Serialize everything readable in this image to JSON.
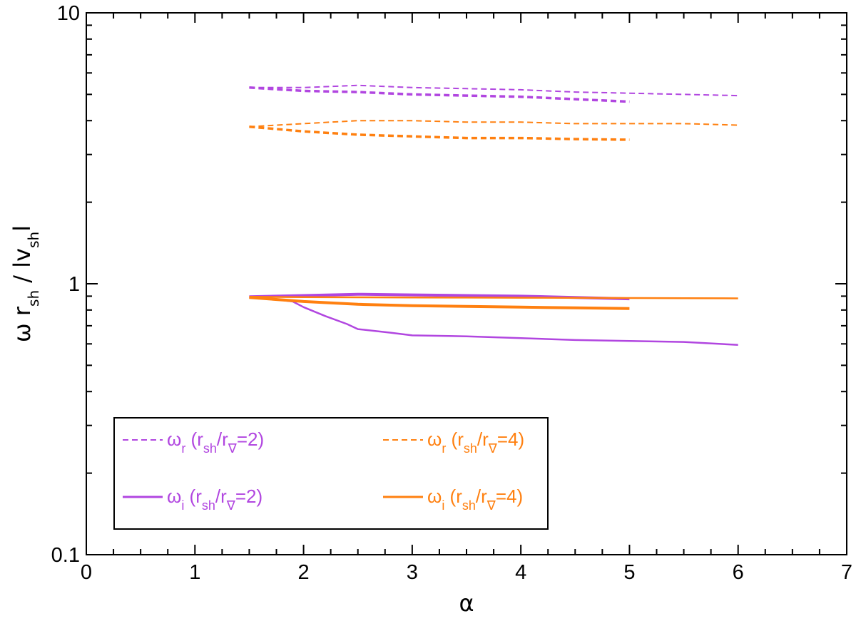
{
  "chart_data": {
    "type": "line",
    "title": "",
    "xlabel": "α",
    "ylabel": {
      "base": "ω r",
      "sub1": "sh",
      "mid": " / lv",
      "sub2": "sh",
      "end": "l"
    },
    "xlim": [
      0,
      7
    ],
    "ylim": [
      0.1,
      10
    ],
    "yscale": "log",
    "x_ticks": [
      "0",
      "1",
      "2",
      "3",
      "4",
      "5",
      "6",
      "7"
    ],
    "y_ticks": [
      "0.1",
      "1",
      "10"
    ],
    "grid": false,
    "legend_position": "lower-left",
    "colors": {
      "purple": "#b146e0",
      "orange": "#ff8010"
    },
    "legend": [
      {
        "sym": "ω",
        "sub": "r",
        "open": " (r",
        "sub2": "sh",
        "mid": "/r",
        "sub3": "∇",
        "close": "=2)",
        "color": "#b146e0",
        "dash": true
      },
      {
        "sym": "ω",
        "sub": "r",
        "open": " (r",
        "sub2": "sh",
        "mid": "/r",
        "sub3": "∇",
        "close": "=4)",
        "color": "#ff8010",
        "dash": true
      },
      {
        "sym": "ω",
        "sub": "i",
        "open": " (r",
        "sub2": "sh",
        "mid": "/r",
        "sub3": "∇",
        "close": "=2)",
        "color": "#b146e0",
        "dash": false
      },
      {
        "sym": "ω",
        "sub": "i",
        "open": " (r",
        "sub2": "sh",
        "mid": "/r",
        "sub3": "∇",
        "close": "=4)",
        "color": "#ff8010",
        "dash": false
      }
    ],
    "series": [
      {
        "color": "#b146e0",
        "dash": true,
        "width": 2,
        "x": [
          1.5,
          2.0,
          2.5,
          3.0,
          3.5,
          4.0,
          4.5,
          5.0,
          5.5,
          6.0
        ],
        "y": [
          5.3,
          5.3,
          5.4,
          5.3,
          5.25,
          5.2,
          5.1,
          5.05,
          5.0,
          4.95
        ]
      },
      {
        "color": "#b146e0",
        "dash": true,
        "width": 3.5,
        "x": [
          1.5,
          2.0,
          2.5,
          3.0,
          3.5,
          4.0,
          4.5,
          5.0
        ],
        "y": [
          5.3,
          5.15,
          5.1,
          5.0,
          4.95,
          4.9,
          4.8,
          4.7
        ]
      },
      {
        "color": "#ff8010",
        "dash": true,
        "width": 2,
        "x": [
          1.5,
          2.0,
          2.5,
          3.0,
          3.5,
          4.0,
          4.5,
          5.0,
          5.5,
          6.0
        ],
        "y": [
          3.8,
          3.9,
          4.0,
          4.0,
          3.95,
          3.95,
          3.9,
          3.9,
          3.9,
          3.85
        ]
      },
      {
        "color": "#ff8010",
        "dash": true,
        "width": 3.5,
        "x": [
          1.5,
          2.0,
          2.5,
          3.0,
          3.5,
          4.0,
          4.5,
          5.0
        ],
        "y": [
          3.8,
          3.65,
          3.55,
          3.5,
          3.45,
          3.45,
          3.42,
          3.4
        ]
      },
      {
        "color": "#b146e0",
        "dash": false,
        "width": 2.5,
        "x": [
          1.5,
          1.7,
          1.9,
          2.0,
          2.2,
          2.4,
          2.5,
          2.8,
          3.0,
          3.5,
          4.0,
          4.5,
          5.0,
          5.5,
          6.0
        ],
        "y": [
          0.89,
          0.88,
          0.86,
          0.82,
          0.76,
          0.71,
          0.68,
          0.66,
          0.645,
          0.64,
          0.63,
          0.62,
          0.615,
          0.61,
          0.595
        ]
      },
      {
        "color": "#b146e0",
        "dash": false,
        "width": 4,
        "x": [
          1.5,
          2.0,
          2.5,
          3.0,
          3.5,
          4.0,
          4.5,
          5.0
        ],
        "y": [
          0.895,
          0.905,
          0.915,
          0.91,
          0.905,
          0.9,
          0.89,
          0.88
        ]
      },
      {
        "color": "#ff8010",
        "dash": false,
        "width": 2.5,
        "x": [
          1.5,
          2.0,
          2.5,
          3.0,
          3.5,
          4.0,
          4.5,
          5.0,
          5.5,
          6.0
        ],
        "y": [
          0.895,
          0.893,
          0.891,
          0.89,
          0.889,
          0.888,
          0.887,
          0.886,
          0.885,
          0.883
        ]
      },
      {
        "color": "#ff8010",
        "dash": false,
        "width": 4,
        "x": [
          1.5,
          2.0,
          2.5,
          3.0,
          3.5,
          4.0,
          4.5,
          5.0
        ],
        "y": [
          0.89,
          0.86,
          0.84,
          0.83,
          0.825,
          0.82,
          0.815,
          0.81
        ]
      }
    ]
  }
}
